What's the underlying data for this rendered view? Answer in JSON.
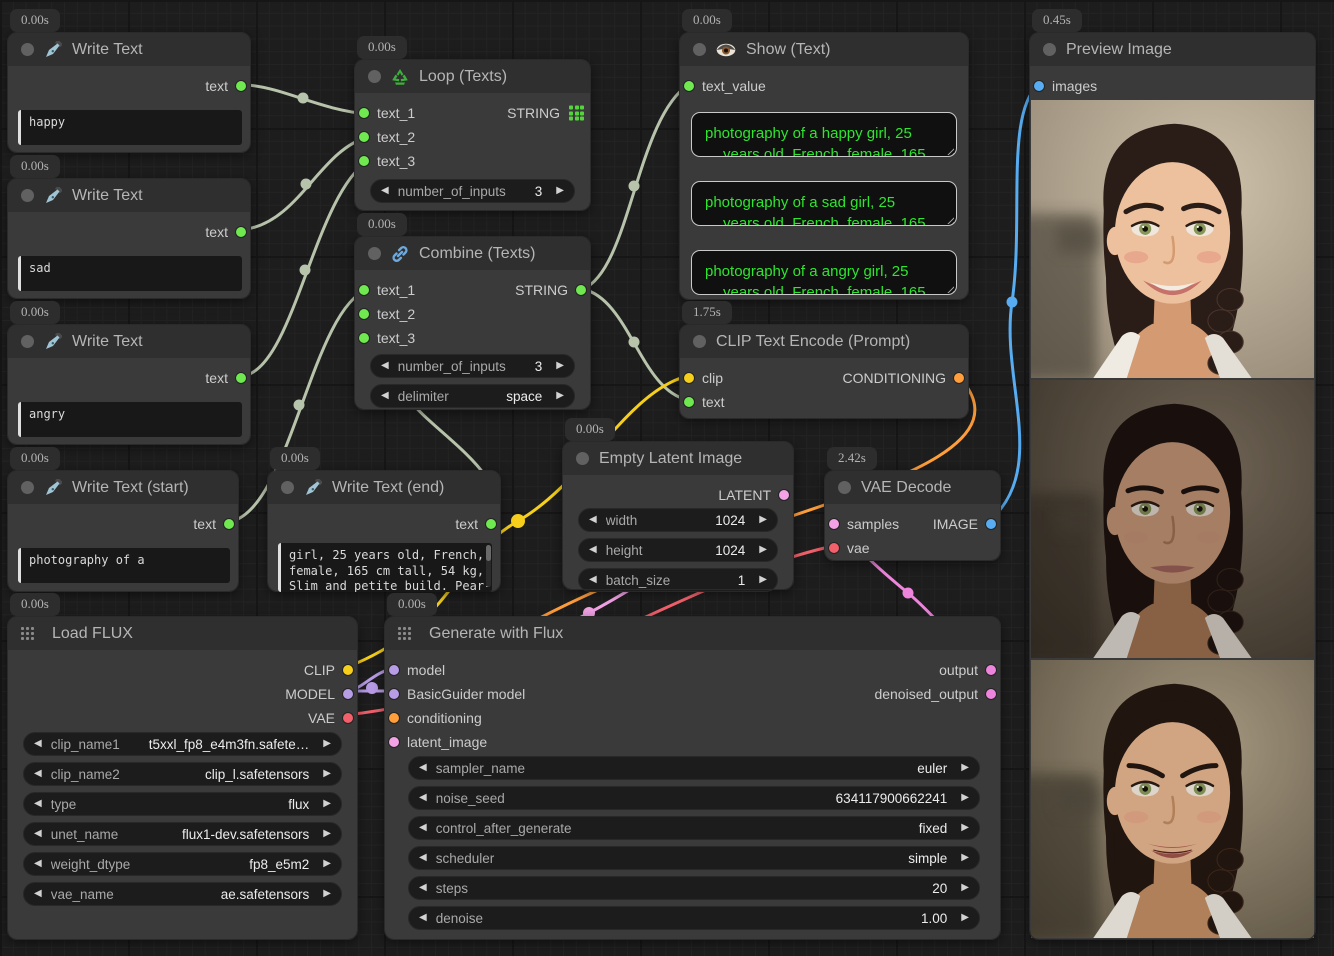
{
  "ui": {
    "arrow_left": "◀",
    "arrow_right": "▶"
  },
  "colors": {
    "string_slot": "#6fe94f",
    "clip": "#f5cf1b",
    "model": "#b79ce6",
    "vae": "#f1606b",
    "conditioning": "#ff9e3b",
    "latent": "#f2a2e5",
    "image": "#58adf2",
    "string_wire": "#b7c3ab",
    "show_text_green": "#2ee62e"
  },
  "nodes": {
    "write_text_1": {
      "timer": "0.00s",
      "title": "Write Text",
      "output_label": "text",
      "text": "happy"
    },
    "write_text_2": {
      "timer": "0.00s",
      "title": "Write Text",
      "output_label": "text",
      "text": "sad"
    },
    "write_text_3": {
      "timer": "0.00s",
      "title": "Write Text",
      "output_label": "text",
      "text": "angry"
    },
    "write_text_start": {
      "timer": "0.00s",
      "title": "Write Text (start)",
      "output_label": "text",
      "text": "photography of a"
    },
    "write_text_end": {
      "timer": "0.00s",
      "title": "Write Text (end)",
      "output_label": "text",
      "lines": [
        "girl, 25 years old, French,",
        "female, 165 cm tall, 54 kg,",
        "Slim and petite build. Pear-"
      ]
    },
    "loop_texts": {
      "timer": "0.00s",
      "title": "Loop (Texts)",
      "inputs": [
        "text_1",
        "text_2",
        "text_3"
      ],
      "output_label": "STRING",
      "widgets": [
        {
          "label": "number_of_inputs",
          "value": "3"
        }
      ]
    },
    "combine_texts": {
      "timer": "0.00s",
      "title": "Combine (Texts)",
      "inputs": [
        "text_1",
        "text_2",
        "text_3"
      ],
      "output_label": "STRING",
      "widgets": [
        {
          "label": "number_of_inputs",
          "value": "3"
        },
        {
          "label": "delimiter",
          "value": "space"
        }
      ]
    },
    "show_text": {
      "timer": "0.00s",
      "title": "Show (Text)",
      "input_label": "text_value",
      "values": [
        {
          "line1": "photography of a happy girl, 25",
          "line2": "years old, French, female, 165"
        },
        {
          "line1": "photography of a sad girl, 25",
          "line2": "years old, French, female, 165"
        },
        {
          "line1": "photography of a angry girl, 25",
          "line2": "years old, French, female, 165"
        }
      ]
    },
    "clip_text_encode": {
      "timer": "1.75s",
      "title": "CLIP Text Encode (Prompt)",
      "inputs": [
        "clip",
        "text"
      ],
      "output_label": "CONDITIONING"
    },
    "empty_latent": {
      "timer": "0.00s",
      "title": "Empty Latent Image",
      "output_label": "LATENT",
      "widgets": [
        {
          "label": "width",
          "value": "1024"
        },
        {
          "label": "height",
          "value": "1024"
        },
        {
          "label": "batch_size",
          "value": "1"
        }
      ]
    },
    "vae_decode": {
      "timer": "2.42s",
      "title": "VAE Decode",
      "inputs": [
        "samples",
        "vae"
      ],
      "output_label": "IMAGE"
    },
    "load_flux": {
      "timer": "0.00s",
      "title": "Load FLUX",
      "outputs": [
        "CLIP",
        "MODEL",
        "VAE"
      ],
      "widgets": [
        {
          "label": "clip_name1",
          "value": "t5xxl_fp8_e4m3fn.safete…"
        },
        {
          "label": "clip_name2",
          "value": "clip_l.safetensors"
        },
        {
          "label": "type",
          "value": "flux"
        },
        {
          "label": "unet_name",
          "value": "flux1-dev.safetensors"
        },
        {
          "label": "weight_dtype",
          "value": "fp8_e5m2"
        },
        {
          "label": "vae_name",
          "value": "ae.safetensors"
        }
      ]
    },
    "generate_flux": {
      "timer": "0.00s",
      "title": "Generate with Flux",
      "inputs": [
        "model",
        "BasicGuider model",
        "conditioning",
        "latent_image"
      ],
      "outputs": [
        "output",
        "denoised_output"
      ],
      "widgets": [
        {
          "label": "sampler_name",
          "value": "euler"
        },
        {
          "label": "noise_seed",
          "value": "634117900662241"
        },
        {
          "label": "control_after_generate",
          "value": "fixed"
        },
        {
          "label": "scheduler",
          "value": "simple"
        },
        {
          "label": "steps",
          "value": "20"
        },
        {
          "label": "denoise",
          "value": "1.00"
        }
      ]
    },
    "preview_image": {
      "timer": "0.45s",
      "title": "Preview Image",
      "input_label": "images",
      "images": [
        {
          "mood": "happy",
          "bg1": "#cfc2ab",
          "bg2": "#8e8270",
          "skin": "#eec19e",
          "skinSh": "#d49a72",
          "hair": "#2a1d18",
          "hairHi": "#4a352c",
          "lip": "#c4726a",
          "dim": 0,
          "blush": 0.45
        },
        {
          "mood": "sad",
          "bg1": "#8a7e6c",
          "bg2": "#3f382e",
          "skin": "#cf9f7f",
          "skinSh": "#aa7a58",
          "hair": "#1c1310",
          "hairHi": "#39281f",
          "lip": "#a5675f",
          "dim": 0.22,
          "blush": 0.12
        },
        {
          "mood": "angry",
          "bg1": "#b2a48b",
          "bg2": "#5c5242",
          "skin": "#e3b28e",
          "skinSh": "#bd8a61",
          "hair": "#231611",
          "hairHi": "#41291d",
          "lip": "#b06355",
          "dim": 0.08,
          "blush": 0.3
        }
      ]
    }
  }
}
